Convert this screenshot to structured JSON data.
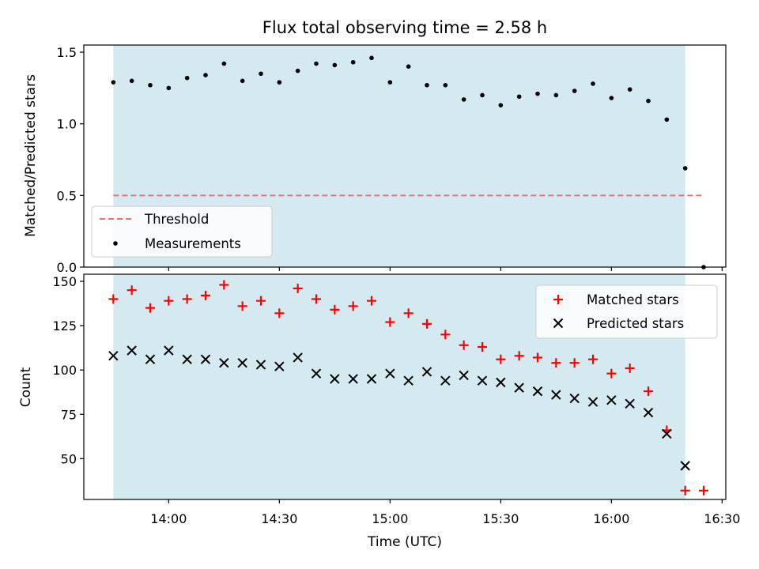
{
  "chart_data": [
    {
      "type": "scatter",
      "title": "Flux total observing time = 2.58 h",
      "xlabel": "",
      "ylabel": "Matched/Predicted stars",
      "ylim": [
        0,
        1.55
      ],
      "yticks": [
        "0.0",
        "0.5",
        "1.0",
        "1.5"
      ],
      "ytick_values": [
        0,
        0.5,
        1.0,
        1.5
      ],
      "shaded_interval": [
        "13:45",
        "16:20"
      ],
      "shade_color": "#d4eaf0",
      "legend": {
        "placement": "lower left",
        "entries": [
          "Threshold",
          "Measurements"
        ]
      },
      "threshold": {
        "name": "Threshold",
        "y": 0.5,
        "x": [
          "13:45",
          "16:25"
        ],
        "color": "#f07070",
        "style": "dashed"
      },
      "series": [
        {
          "name": "Measurements",
          "color": "#000000",
          "marker": "dot",
          "x": [
            "13:45",
            "13:50",
            "13:55",
            "14:00",
            "14:05",
            "14:10",
            "14:15",
            "14:20",
            "14:25",
            "14:30",
            "14:35",
            "14:40",
            "14:45",
            "14:50",
            "14:55",
            "15:00",
            "15:05",
            "15:10",
            "15:15",
            "15:20",
            "15:25",
            "15:30",
            "15:35",
            "15:40",
            "15:45",
            "15:50",
            "15:55",
            "16:00",
            "16:05",
            "16:10",
            "16:15",
            "16:20",
            "16:25"
          ],
          "values": [
            1.29,
            1.3,
            1.27,
            1.25,
            1.32,
            1.34,
            1.42,
            1.3,
            1.35,
            1.29,
            1.37,
            1.42,
            1.41,
            1.43,
            1.46,
            1.29,
            1.4,
            1.27,
            1.27,
            1.17,
            1.2,
            1.13,
            1.19,
            1.21,
            1.2,
            1.23,
            1.28,
            1.18,
            1.24,
            1.16,
            1.03,
            0.69,
            0.0
          ]
        }
      ]
    },
    {
      "type": "scatter",
      "title": "",
      "xlabel": "Time (UTC)",
      "ylabel": "Count",
      "ylim": [
        27,
        154
      ],
      "yticks": [
        "50",
        "75",
        "100",
        "125",
        "150"
      ],
      "ytick_values": [
        50,
        75,
        100,
        125,
        150
      ],
      "xlim": [
        "13:37",
        "16:31"
      ],
      "xticks": [
        "14:00",
        "14:30",
        "15:00",
        "15:30",
        "16:00",
        "16:30"
      ],
      "shaded_interval": [
        "13:45",
        "16:20"
      ],
      "shade_color": "#d4eaf0",
      "legend": {
        "placement": "upper right",
        "entries": [
          "Matched stars",
          "Predicted stars"
        ]
      },
      "series": [
        {
          "name": "Matched stars",
          "color": "#ff0000",
          "marker": "plus",
          "x": [
            "13:45",
            "13:50",
            "13:55",
            "14:00",
            "14:05",
            "14:10",
            "14:15",
            "14:20",
            "14:25",
            "14:30",
            "14:35",
            "14:40",
            "14:45",
            "14:50",
            "14:55",
            "15:00",
            "15:05",
            "15:10",
            "15:15",
            "15:20",
            "15:25",
            "15:30",
            "15:35",
            "15:40",
            "15:45",
            "15:50",
            "15:55",
            "16:00",
            "16:05",
            "16:10",
            "16:15",
            "16:20",
            "16:25"
          ],
          "values": [
            140,
            145,
            135,
            139,
            140,
            142,
            148,
            136,
            139,
            132,
            146,
            140,
            134,
            136,
            139,
            127,
            132,
            126,
            120,
            114,
            113,
            106,
            108,
            107,
            104,
            104,
            106,
            98,
            101,
            88,
            66,
            32,
            32
          ]
        },
        {
          "name": "Predicted stars",
          "color": "#000000",
          "marker": "x",
          "x": [
            "13:45",
            "13:50",
            "13:55",
            "14:00",
            "14:05",
            "14:10",
            "14:15",
            "14:20",
            "14:25",
            "14:30",
            "14:35",
            "14:40",
            "14:45",
            "14:50",
            "14:55",
            "15:00",
            "15:05",
            "15:10",
            "15:15",
            "15:20",
            "15:25",
            "15:30",
            "15:35",
            "15:40",
            "15:45",
            "15:50",
            "15:55",
            "16:00",
            "16:05",
            "16:10",
            "16:15",
            "16:20"
          ],
          "values": [
            108,
            111,
            106,
            111,
            106,
            106,
            104,
            104,
            103,
            102,
            107,
            98,
            95,
            95,
            95,
            98,
            94,
            99,
            94,
            97,
            94,
            93,
            90,
            88,
            86,
            84,
            82,
            83,
            81,
            76,
            64,
            46
          ]
        }
      ]
    }
  ]
}
